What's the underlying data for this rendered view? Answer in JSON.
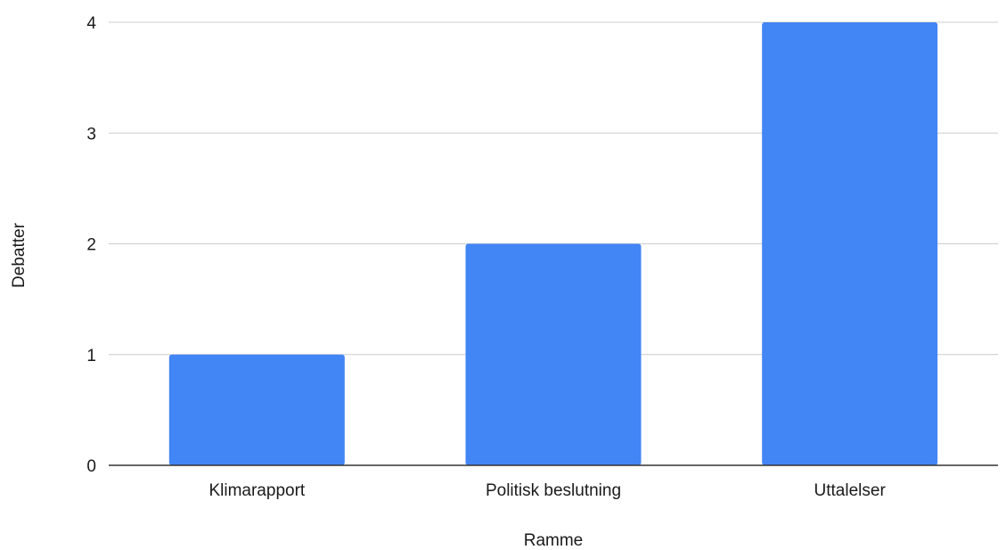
{
  "chart_data": {
    "type": "bar",
    "categories": [
      "Klimarapport",
      "Politisk beslutning",
      "Uttalelser"
    ],
    "values": [
      1,
      2,
      4
    ],
    "xlabel": "Ramme",
    "ylabel": "Debatter",
    "ylim": [
      0,
      4
    ],
    "yticks": [
      "0",
      "1",
      "2",
      "3",
      "4"
    ],
    "grid": true,
    "legend": "none",
    "colors": {
      "bar": "#4285f4",
      "grid": "#cccccc",
      "axis": "#333333"
    }
  }
}
